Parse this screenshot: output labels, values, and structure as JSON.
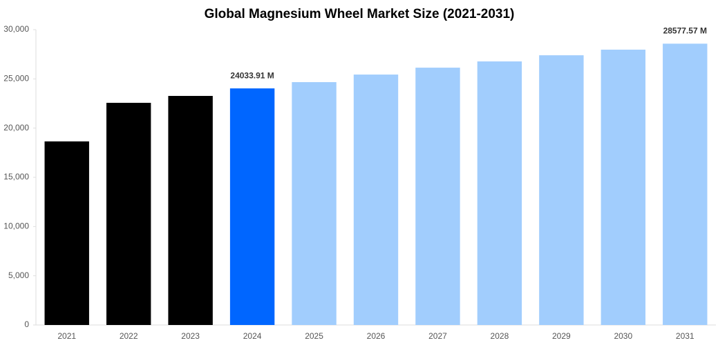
{
  "chart_data": {
    "type": "bar",
    "title": "Global Magnesium Wheel Market Size (2021-2031)",
    "categories": [
      "2021",
      "2022",
      "2023",
      "2024",
      "2025",
      "2026",
      "2027",
      "2028",
      "2029",
      "2030",
      "2031"
    ],
    "values": [
      18650,
      22570,
      23270,
      24033.91,
      24670,
      25440,
      26140,
      26775,
      27400,
      27970,
      28577.57
    ],
    "value_labels": [
      null,
      null,
      null,
      "24033.91 M",
      null,
      null,
      null,
      null,
      null,
      null,
      "28577.57 M"
    ],
    "colors": [
      "#000000",
      "#000000",
      "#000000",
      "#0066ff",
      "#a1cdfd",
      "#a1cdfd",
      "#a1cdfd",
      "#a1cdfd",
      "#a1cdfd",
      "#a1cdfd",
      "#a1cdfd"
    ],
    "ylim": [
      0,
      30000
    ],
    "yticks": [
      0,
      {
        "value": 5000,
        "label": "5,000"
      },
      {
        "value": 10000,
        "label": "10,000"
      },
      {
        "value": 15000,
        "label": "15,000"
      },
      {
        "value": 20000,
        "label": "20,000"
      },
      {
        "value": 25000,
        "label": "25,000"
      },
      {
        "value": 30000,
        "label": "30,000"
      }
    ],
    "grid": false
  }
}
